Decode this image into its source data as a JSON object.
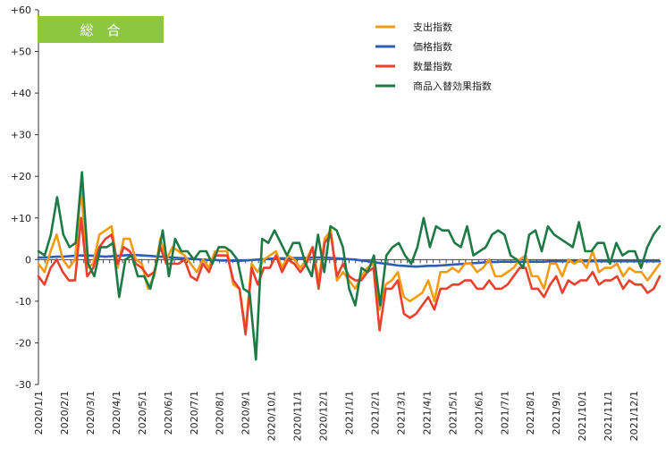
{
  "chart_data": {
    "type": "line",
    "title": "総　合",
    "title_bg_color": "#8DC63F",
    "ylim": [
      -30,
      60
    ],
    "yticks": [
      -30,
      -20,
      -10,
      0,
      10,
      20,
      30,
      40,
      50,
      60
    ],
    "ytick_labels": [
      "-30",
      "-20",
      "-10",
      "0",
      "+10",
      "+20",
      "+30",
      "+40",
      "+50",
      "+60"
    ],
    "grid": false,
    "legend_position": "top-right",
    "x_tick_labels": [
      "2020/1/1",
      "2020/2/1",
      "2020/3/1",
      "2020/4/1",
      "2020/5/1",
      "2020/6/1",
      "2020/7/1",
      "2020/8/1",
      "2020/9/1",
      "2020/10/1",
      "2020/11/1",
      "2020/12/1",
      "2021/1/1",
      "2021/2/1",
      "2021/3/1",
      "2021/4/1",
      "2021/5/1",
      "2021/6/1",
      "2021/7/1",
      "2021/8/1",
      "2021/9/1",
      "2021/10/1",
      "2021/11/1",
      "2021/12/1"
    ],
    "series": [
      {
        "name": "支出指数",
        "color": "#F39C12",
        "values": [
          -1,
          -3,
          2,
          6,
          0,
          -2,
          0,
          17,
          -2,
          -1,
          6,
          7,
          8,
          -2,
          5,
          5,
          0,
          -1,
          -7,
          -4,
          5,
          0,
          3,
          2,
          1,
          -1,
          -3,
          0,
          -2,
          2,
          2,
          2,
          -6,
          -7,
          -17,
          -1,
          -3,
          0,
          1,
          2,
          -2,
          1,
          0,
          -2,
          0,
          3,
          -5,
          5,
          7,
          -5,
          -3,
          -5,
          -7,
          -4,
          -2,
          -1,
          -12,
          -6,
          -5,
          -3,
          -9,
          -10,
          -9,
          -8,
          -5,
          -10,
          -3,
          -3,
          -2,
          -3,
          -1,
          -1,
          -3,
          -2,
          0,
          -4,
          -4,
          -3,
          -2,
          0,
          1,
          -4,
          -4,
          -7,
          -1,
          -1,
          -4,
          0,
          -1,
          0,
          -2,
          2,
          -3,
          -2,
          -2,
          -1,
          -4,
          -2,
          -3,
          -3,
          -5,
          -3,
          -1
        ]
      },
      {
        "name": "価格指数",
        "color": "#2E5DB5",
        "values": [
          0.5,
          0.5,
          0.6,
          0.7,
          0.7,
          0.8,
          0.9,
          1.0,
          1.0,
          0.9,
          0.8,
          0.7,
          0.8,
          0.9,
          1.0,
          1.1,
          1.1,
          1.0,
          0.9,
          0.8,
          0.7,
          0.6,
          0.5,
          0.4,
          0.3,
          0.2,
          0.1,
          0.0,
          -0.1,
          -0.1,
          -0.2,
          -0.2,
          -0.3,
          -0.3,
          -0.2,
          -0.1,
          0.0,
          0.1,
          0.2,
          0.3,
          0.3,
          0.3,
          0.4,
          0.4,
          0.4,
          0.5,
          0.5,
          0.5,
          0.4,
          0.3,
          0.2,
          0.1,
          0.0,
          -0.2,
          -0.4,
          -0.6,
          -0.8,
          -1.0,
          -1.2,
          -1.4,
          -1.5,
          -1.6,
          -1.7,
          -1.6,
          -1.5,
          -1.5,
          -1.4,
          -1.3,
          -1.2,
          -1.1,
          -1.0,
          -0.9,
          -0.8,
          -0.7,
          -0.6,
          -0.6,
          -0.5,
          -0.5,
          -0.5,
          -0.5,
          -0.5,
          -0.5,
          -0.5,
          -0.5,
          -0.4,
          -0.4,
          -0.4,
          -0.4,
          -0.4,
          -0.4,
          -0.4,
          -0.4,
          -0.4,
          -0.4,
          -0.4,
          -0.4,
          -0.4,
          -0.4,
          -0.4,
          -0.4,
          -0.4,
          -0.4,
          -0.4
        ]
      },
      {
        "name": "数量指数",
        "color": "#E8412E",
        "values": [
          -4,
          -6,
          -2,
          0,
          -3,
          -5,
          -5,
          10,
          -4,
          -2,
          3,
          5,
          6,
          -1,
          3,
          2,
          -1,
          -2,
          -4,
          -3,
          3,
          -1,
          -1,
          -1,
          0,
          -4,
          -5,
          -1,
          -3,
          1,
          1,
          1,
          -5,
          -7,
          -18,
          -2,
          -6,
          -2,
          -2,
          1,
          -3,
          0,
          -1,
          -3,
          -1,
          3,
          -7,
          4,
          6,
          -4,
          -1,
          -4,
          -5,
          -5,
          -3,
          -2,
          -17,
          -7,
          -7,
          -5,
          -13,
          -14,
          -13,
          -11,
          -9,
          -12,
          -7,
          -7,
          -6,
          -6,
          -5,
          -5,
          -7,
          -7,
          -5,
          -7,
          -7,
          -6,
          -4,
          -2,
          -2,
          -7,
          -7,
          -9,
          -6,
          -4,
          -8,
          -5,
          -6,
          -5,
          -5,
          -3,
          -6,
          -5,
          -5,
          -4,
          -7,
          -5,
          -6,
          -6,
          -8,
          -7,
          -4
        ]
      },
      {
        "name": "商品入替効果指数",
        "color": "#1E7A45",
        "values": [
          2,
          1,
          6,
          15,
          6,
          3,
          4,
          21,
          -1,
          -4,
          3,
          3,
          4,
          -9,
          0,
          1,
          -4,
          -4,
          -7,
          -1,
          7,
          -4,
          5,
          2,
          2,
          0,
          2,
          2,
          -1,
          3,
          3,
          2,
          0,
          -7,
          -8,
          -24,
          5,
          4,
          7,
          4,
          1,
          4,
          4,
          -1,
          -4,
          6,
          -3,
          8,
          7,
          3,
          -7,
          -11,
          -2,
          -3,
          1,
          -11,
          1,
          3,
          4,
          1,
          -1,
          3,
          10,
          3,
          8,
          7,
          7,
          4,
          3,
          8,
          1,
          2,
          3,
          6,
          7,
          6,
          1,
          0,
          -2,
          6,
          7,
          2,
          8,
          6,
          5,
          4,
          3,
          9,
          2,
          2,
          4,
          4,
          -1,
          4,
          1,
          2,
          2,
          -2,
          3,
          6,
          8
        ]
      }
    ]
  }
}
